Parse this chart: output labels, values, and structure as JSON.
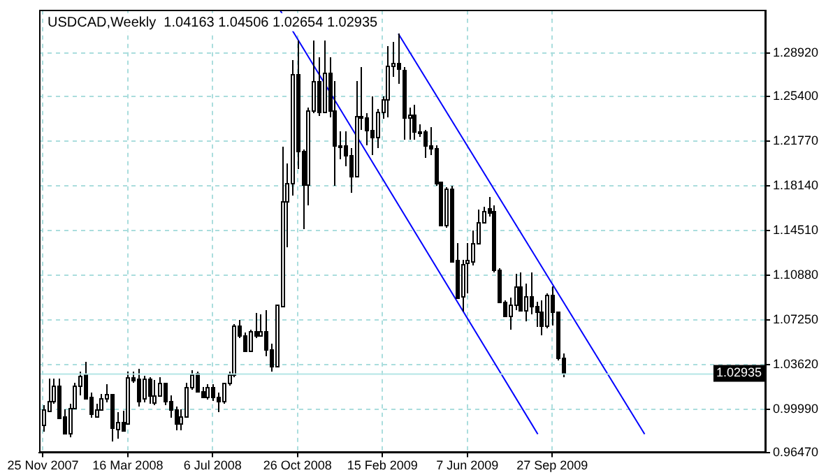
{
  "chart_data": {
    "type": "candlestick",
    "title": "USDCAD,Weekly  1.04163 1.04506 1.02654 1.02935",
    "color": "#000000",
    "x": [
      "2007-11-25",
      "2007-12-02",
      "2007-12-09",
      "2007-12-16",
      "2007-12-23",
      "2007-12-30",
      "2008-01-06",
      "2008-01-13",
      "2008-01-20",
      "2008-01-27",
      "2008-02-03",
      "2008-02-10",
      "2008-02-17",
      "2008-02-24",
      "2008-03-02",
      "2008-03-09",
      "2008-03-16",
      "2008-03-23",
      "2008-03-30",
      "2008-04-06",
      "2008-04-13",
      "2008-04-20",
      "2008-04-27",
      "2008-05-04",
      "2008-05-11",
      "2008-05-18",
      "2008-05-25",
      "2008-06-01",
      "2008-06-08",
      "2008-06-15",
      "2008-06-22",
      "2008-06-29",
      "2008-07-06",
      "2008-07-13",
      "2008-07-20",
      "2008-07-27",
      "2008-08-03",
      "2008-08-10",
      "2008-08-17",
      "2008-08-24",
      "2008-08-31",
      "2008-09-07",
      "2008-09-14",
      "2008-09-21",
      "2008-09-28",
      "2008-10-05",
      "2008-10-12",
      "2008-10-19",
      "2008-10-26",
      "2008-11-02",
      "2008-11-09",
      "2008-11-16",
      "2008-11-23",
      "2008-11-30",
      "2008-12-07",
      "2008-12-14",
      "2008-12-21",
      "2008-12-28",
      "2009-01-04",
      "2009-01-11",
      "2009-01-18",
      "2009-01-25",
      "2009-02-01",
      "2009-02-08",
      "2009-02-15",
      "2009-02-22",
      "2009-03-01",
      "2009-03-08",
      "2009-03-15",
      "2009-03-22",
      "2009-03-29",
      "2009-04-05",
      "2009-04-12",
      "2009-04-19",
      "2009-04-26",
      "2009-05-03",
      "2009-05-10",
      "2009-05-17",
      "2009-05-24",
      "2009-05-31",
      "2009-06-07",
      "2009-06-14",
      "2009-06-21",
      "2009-06-28",
      "2009-07-05",
      "2009-07-12",
      "2009-07-19",
      "2009-07-26",
      "2009-08-02",
      "2009-08-09",
      "2009-08-16",
      "2009-08-23",
      "2009-08-30",
      "2009-09-06",
      "2009-09-13",
      "2009-09-20",
      "2009-09-27",
      "2009-10-04",
      "2009-10-11"
    ],
    "ohlc": [
      [
        0.9873,
        1.0035,
        0.9817,
        1.0005
      ],
      [
        0.9986,
        1.0248,
        0.9975,
        1.0072
      ],
      [
        1.0072,
        1.0248,
        1.0042,
        1.0192
      ],
      [
        1.0192,
        1.0248,
        0.9918,
        0.993
      ],
      [
        0.9948,
        1.0005,
        0.9798,
        0.981
      ],
      [
        0.981,
        1.0042,
        0.9772,
        1.0012
      ],
      [
        1.0012,
        1.0211,
        1.0005,
        1.0192
      ],
      [
        1.0192,
        1.0312,
        1.0117,
        1.0275
      ],
      [
        1.0286,
        1.0387,
        1.008,
        1.0087
      ],
      [
        1.0106,
        1.0136,
        0.993,
        0.9967
      ],
      [
        0.9948,
        1.0042,
        0.993,
        1.0005
      ],
      [
        1.0005,
        1.0125,
        0.9986,
        1.0087
      ],
      [
        1.0087,
        1.02,
        1.0061,
        1.0125
      ],
      [
        1.0125,
        1.0125,
        0.9742,
        0.9855
      ],
      [
        0.9847,
        0.9975,
        0.9761,
        0.99
      ],
      [
        0.99,
        0.9986,
        0.9825,
        0.9836
      ],
      [
        0.9892,
        1.0305,
        0.9873,
        1.026
      ],
      [
        1.026,
        1.0312,
        1.0222,
        1.0237
      ],
      [
        1.0245,
        1.0331,
        1.0023,
        1.0072
      ],
      [
        1.0087,
        1.0275,
        1.0061,
        1.0248
      ],
      [
        1.0248,
        1.0267,
        1.0042,
        1.0117
      ],
      [
        1.0061,
        1.0237,
        1.0035,
        1.0117
      ],
      [
        1.0117,
        1.026,
        1.0098,
        1.0211
      ],
      [
        1.0211,
        1.0222,
        1.0035,
        1.0072
      ],
      [
        1.0072,
        1.0117,
        0.9937,
        1.0005
      ],
      [
        1.0005,
        1.0023,
        0.9836,
        0.9885
      ],
      [
        0.9885,
        1.0005,
        0.9836,
        0.9948
      ],
      [
        0.9948,
        1.0211,
        0.993,
        1.0185
      ],
      [
        1.0185,
        1.0323,
        1.0155,
        1.0286
      ],
      [
        1.0297,
        1.0305,
        1.0136,
        1.0147
      ],
      [
        1.0147,
        1.0185,
        1.0087,
        1.0098
      ],
      [
        1.0098,
        1.02,
        1.008,
        1.0185
      ],
      [
        1.0185,
        1.02,
        1.0072,
        1.0098
      ],
      [
        1.0098,
        1.0136,
        0.9975,
        1.0068
      ],
      [
        1.0068,
        1.0222,
        1.005,
        1.0211
      ],
      [
        1.0211,
        1.0305,
        1.0192,
        1.0286
      ],
      [
        1.0286,
        1.0698,
        1.0267,
        1.068
      ],
      [
        1.068,
        1.0728,
        1.0575,
        1.0597
      ],
      [
        1.0597,
        1.0623,
        1.0462,
        1.0473
      ],
      [
        1.0473,
        1.0642,
        1.0462,
        1.0635
      ],
      [
        1.0635,
        1.078,
        1.0575,
        1.0597
      ],
      [
        1.0597,
        1.0773,
        1.0597,
        1.0635
      ],
      [
        1.0635,
        1.0811,
        1.0436,
        1.0485
      ],
      [
        1.0485,
        1.053,
        1.0305,
        1.035
      ],
      [
        1.035,
        1.0856,
        1.0342,
        1.0848
      ],
      [
        1.0837,
        1.2131,
        1.083,
        1.1692
      ],
      [
        1.1692,
        1.1992,
        1.1317,
        1.1842
      ],
      [
        1.1842,
        1.2836,
        1.1737,
        1.2723
      ],
      [
        1.2723,
        1.2997,
        1.1955,
        1.2097
      ],
      [
        1.2097,
        1.2105,
        1.1467,
        1.1823
      ],
      [
        1.1823,
        1.2449,
        1.1655,
        1.2423
      ],
      [
        1.2423,
        1.2997,
        1.2405,
        1.2667
      ],
      [
        1.2667,
        1.2862,
        1.2386,
        1.2412
      ],
      [
        1.2412,
        1.2997,
        1.2405,
        1.2735
      ],
      [
        1.2735,
        1.2862,
        1.2367,
        1.2423
      ],
      [
        1.2423,
        1.2667,
        1.1812,
        1.215
      ],
      [
        1.215,
        1.2255,
        1.203,
        1.2142
      ],
      [
        1.2142,
        1.2255,
        1.1973,
        1.2067
      ],
      [
        1.2067,
        1.2123,
        1.176,
        1.1898
      ],
      [
        1.1898,
        1.2667,
        1.188,
        1.2386
      ],
      [
        1.2386,
        1.278,
        1.2273,
        1.2367
      ],
      [
        1.2367,
        1.2405,
        1.2142,
        1.2273
      ],
      [
        1.2273,
        1.2536,
        1.2067,
        1.221
      ],
      [
        1.221,
        1.2442,
        1.2123,
        1.2412
      ],
      [
        1.2412,
        1.2547,
        1.236,
        1.2517
      ],
      [
        1.2517,
        1.2948,
        1.2375,
        1.2787
      ],
      [
        1.2787,
        1.2986,
        1.2705,
        1.2817
      ],
      [
        1.2817,
        1.3053,
        1.2648,
        1.2772
      ],
      [
        1.2761,
        1.278,
        1.2187,
        1.2375
      ],
      [
        1.2375,
        1.2449,
        1.2187,
        1.2397
      ],
      [
        1.2397,
        1.2472,
        1.2187,
        1.2262
      ],
      [
        1.2262,
        1.2311,
        1.2217,
        1.2247
      ],
      [
        1.2262,
        1.2273,
        1.2042,
        1.215
      ],
      [
        1.215,
        1.2292,
        1.2067,
        1.2123
      ],
      [
        1.2123,
        1.2142,
        1.1812,
        1.1835
      ],
      [
        1.185,
        1.185,
        1.1486,
        1.1497
      ],
      [
        1.1497,
        1.1805,
        1.1475,
        1.1797
      ],
      [
        1.1797,
        1.1812,
        1.1197,
        1.1205
      ],
      [
        1.1212,
        1.1355,
        1.0897,
        1.0912
      ],
      [
        1.0923,
        1.1212,
        1.0792,
        1.1186
      ],
      [
        1.1197,
        1.1355,
        1.0942,
        1.1212
      ],
      [
        1.1205,
        1.1448,
        1.1167,
        1.1347
      ],
      [
        1.1347,
        1.1625,
        1.1336,
        1.1523
      ],
      [
        1.1523,
        1.1647,
        1.1505,
        1.1617
      ],
      [
        1.163,
        1.173,
        1.1561,
        1.16
      ],
      [
        1.1617,
        1.1662,
        1.1111,
        1.113
      ],
      [
        1.1137,
        1.1148,
        1.0867,
        1.0875
      ],
      [
        1.0875,
        1.0886,
        1.0755,
        1.0762
      ],
      [
        1.0762,
        1.0905,
        1.0642,
        1.0848
      ],
      [
        1.0848,
        1.11,
        1.0811,
        1.0998
      ],
      [
        1.0998,
        1.1111,
        1.0792,
        1.0811
      ],
      [
        1.0811,
        1.1025,
        1.0717,
        1.0923
      ],
      [
        1.0923,
        1.1111,
        1.0773,
        1.0837
      ],
      [
        1.0837,
        1.0875,
        1.0672,
        1.0792
      ],
      [
        1.0792,
        1.0886,
        1.0597,
        1.0687
      ],
      [
        1.0687,
        1.0942,
        1.0661,
        1.0935
      ],
      [
        1.0935,
        1.0998,
        1.0679,
        1.0792
      ],
      [
        1.0792,
        1.0799,
        1.0398,
        1.0417
      ],
      [
        1.04163,
        1.04506,
        1.02654,
        1.02935
      ]
    ],
    "series": [
      {
        "type": "line",
        "color": "#0000ff",
        "x": [
          "2009-03-08",
          "2010-01-27"
        ],
        "values": [
          1.305,
          0.98
        ]
      },
      {
        "type": "line",
        "color": "#0000ff",
        "x": [
          "2008-10-03",
          "2009-09-08"
        ],
        "values": [
          1.324,
          0.98
        ]
      }
    ],
    "ref_lines": [
      {
        "axis": "y",
        "value": 1.02935,
        "label": "1.02935",
        "color": "#b4e6e6"
      }
    ],
    "xlim": [
      "2007-11-20",
      "2010-07-06"
    ],
    "xticks": [
      {
        "value": "2007-11-25",
        "label": "25 Nov 2007"
      },
      {
        "value": "2008-03-16",
        "label": "16 Mar 2008"
      },
      {
        "value": "2008-07-06",
        "label": "6 Jul 2008"
      },
      {
        "value": "2008-10-26",
        "label": "26 Oct 2008"
      },
      {
        "value": "2009-02-15",
        "label": "15 Feb 2009"
      },
      {
        "value": "2009-06-07",
        "label": "7 Jun 2009"
      },
      {
        "value": "2009-09-27",
        "label": "27 Sep 2009"
      }
    ],
    "ylim": [
      0.9647,
      1.324
    ],
    "yticks": [
      {
        "value": 0.9647,
        "label": "0.96470"
      },
      {
        "value": 0.9999,
        "label": "0.99990"
      },
      {
        "value": 1.0362,
        "label": "1.03620"
      },
      {
        "value": 1.0725,
        "label": "1.07250"
      },
      {
        "value": 1.1088,
        "label": "1.10880"
      },
      {
        "value": 1.1451,
        "label": "1.14510"
      },
      {
        "value": 1.1814,
        "label": "1.18140"
      },
      {
        "value": 1.2177,
        "label": "1.21770"
      },
      {
        "value": 1.254,
        "label": "1.25400"
      },
      {
        "value": 1.2892,
        "label": "1.28920"
      }
    ],
    "grid": true,
    "legend": false
  }
}
